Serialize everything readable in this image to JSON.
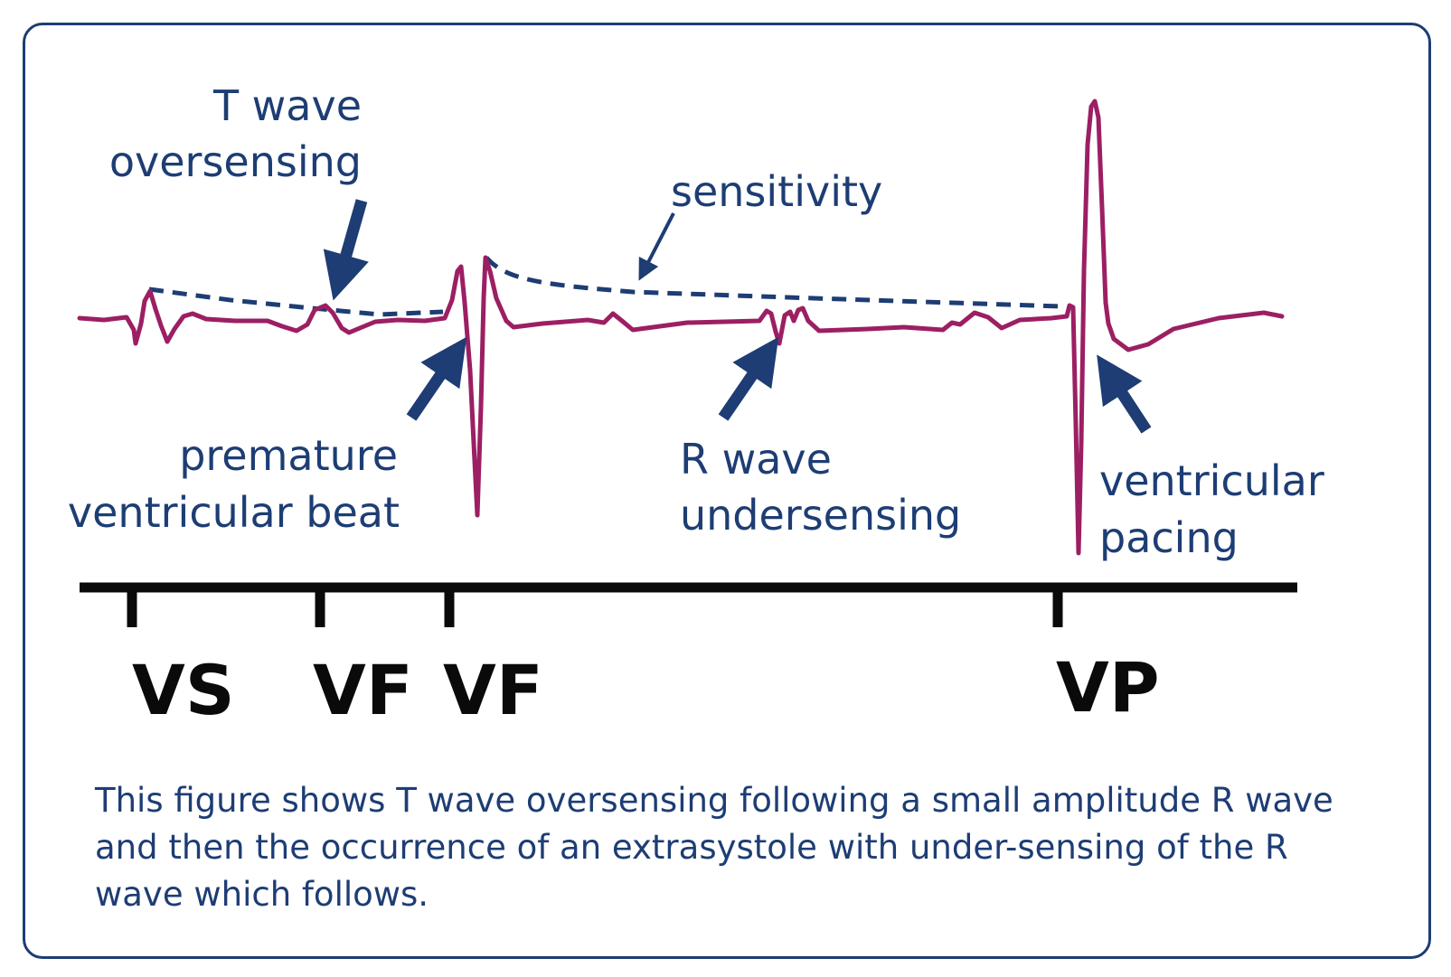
{
  "labels": {
    "t_wave_line1": "T wave",
    "t_wave_line2": "oversensing",
    "sensitivity": "sensitivity",
    "pvb_line1": "premature",
    "pvb_line2": "ventricular beat",
    "r_wave_line1": "R wave",
    "r_wave_line2": "undersensing",
    "vp_line1": "ventricular",
    "vp_line2": "pacing"
  },
  "markers": [
    "VS",
    "VF",
    "VF",
    "VP"
  ],
  "caption": "This figure shows T wave oversensing following a small amplitude R wave and then the occurrence of an extrasystole with under-sensing of the R wave which follows.",
  "colors": {
    "signal": "#9c1f63",
    "annotation": "#1d3d74",
    "timeline": "#0a0a0a",
    "frame": "#1d3d74"
  }
}
